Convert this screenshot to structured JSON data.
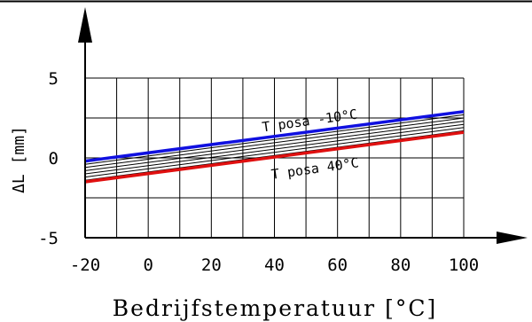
{
  "chart_data": {
    "type": "line",
    "xlabel": "Bedrijfstemperatuur [°C]",
    "ylabel": "ΔL [mm]",
    "xlim": [
      -20,
      100
    ],
    "ylim": [
      -5,
      5
    ],
    "x_ticks": [
      -20,
      0,
      20,
      40,
      60,
      80,
      100
    ],
    "x_tick_labels": [
      "-20",
      "0",
      "20",
      "40",
      "60",
      "80",
      "100"
    ],
    "y_ticks": [
      -5,
      0,
      5
    ],
    "y_tick_labels": [
      "-5",
      "0",
      "5"
    ],
    "grid": true,
    "series": [
      {
        "name": "T posa -10°C",
        "color": "#1010e0",
        "x": [
          -20,
          100
        ],
        "y": [
          -0.2,
          2.9
        ]
      },
      {
        "color": "#000000",
        "x": [
          -20,
          100
        ],
        "y": [
          -0.4,
          2.7
        ]
      },
      {
        "color": "#000000",
        "x": [
          -20,
          100
        ],
        "y": [
          -0.6,
          2.5
        ]
      },
      {
        "color": "#000000",
        "x": [
          -20,
          100
        ],
        "y": [
          -0.8,
          2.3
        ]
      },
      {
        "color": "#000000",
        "x": [
          -20,
          100
        ],
        "y": [
          -1.0,
          2.1
        ]
      },
      {
        "color": "#000000",
        "x": [
          -20,
          100
        ],
        "y": [
          -1.2,
          1.9
        ]
      },
      {
        "color": "#000000",
        "x": [
          -20,
          100
        ],
        "y": [
          -1.4,
          1.7
        ]
      },
      {
        "name": "T posa 40°C",
        "color": "#e01010",
        "x": [
          -20,
          100
        ],
        "y": [
          -1.5,
          1.6
        ]
      }
    ]
  }
}
